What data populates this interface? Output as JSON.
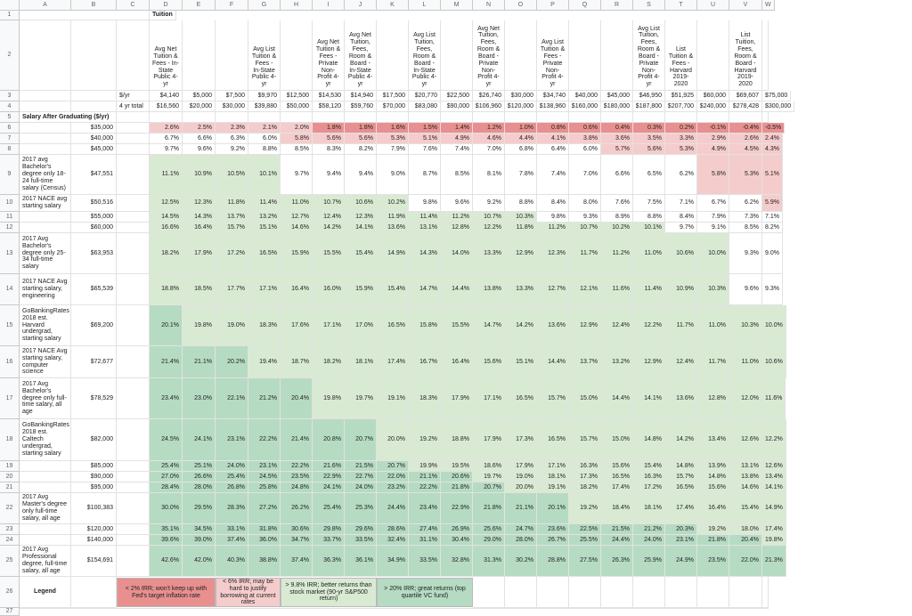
{
  "columns": [
    "A",
    "B",
    "C",
    "D",
    "E",
    "F",
    "G",
    "H",
    "I",
    "J",
    "K",
    "L",
    "M",
    "N",
    "O",
    "P",
    "Q",
    "R",
    "S",
    "T",
    "U",
    "V",
    "W"
  ],
  "rows": [
    "1",
    "2",
    "3",
    "4",
    "5",
    "6",
    "7",
    "8",
    "9",
    "10",
    "11",
    "12",
    "13",
    "14",
    "15",
    "16",
    "17",
    "18",
    "19",
    "20",
    "21",
    "22",
    "23",
    "24",
    "25",
    "26",
    "27"
  ],
  "header": {
    "tuition_label": "Tuition",
    "per_yr_label": "$/yr",
    "total_label": "4 yr total",
    "salary_label": "Salary After Graduating ($/yr)",
    "col_titles": {
      "D": "Avg Net Tuition & Fees - In-State Public 4-yr",
      "G": "Avg List Tuition & Fees - In-State Public 4-yr",
      "I": "Avg Net Tuition & Fees - Private Non-Profit 4-yr",
      "J": "Avg Net Tuition, Fees, Room & Board - In-State Public 4-yr",
      "L": "Avg List Tuition, Fees, Room & Board - In-State Public 4-yr",
      "N": "Avg Net Tuition, Fees, Room & Board - Private Non-Profit 4-yr",
      "P": "Avg List Tuition & Fees - Private Non-Profit 4-yr",
      "S": "Avg List Tuition, Fees, Room & Board - Private Non-Profit 4-yr",
      "T": "List Tuition & Fees - Harvard 2019-2020",
      "V": "List Tuition, Fees, Room & Board - Harvard 2019-2020"
    },
    "per_yr": [
      "$4,140",
      "$5,000",
      "$7,500",
      "$9,970",
      "$12,500",
      "$14,530",
      "$14,940",
      "$17,500",
      "$20,770",
      "$22,500",
      "$26,740",
      "$30,000",
      "$34,740",
      "$40,000",
      "$45,000",
      "$46,950",
      "$51,925",
      "$60,000",
      "$69,607",
      "$75,000"
    ],
    "total": [
      "$16,560",
      "$20,000",
      "$30,000",
      "$39,880",
      "$50,000",
      "$58,120",
      "$59,760",
      "$70,000",
      "$83,080",
      "$90,000",
      "$106,960",
      "$120,000",
      "$138,960",
      "$160,000",
      "$180,000",
      "$187,800",
      "$207,700",
      "$240,000",
      "$278,428",
      "$300,000"
    ]
  },
  "data_rows": [
    {
      "label": "",
      "salary": "$35,000",
      "v": [
        "2.6%",
        "2.5%",
        "2.3%",
        "2.1%",
        "2.0%",
        "1.8%",
        "1.8%",
        "1.6%",
        "1.5%",
        "1.4%",
        "1.2%",
        "1.0%",
        "0.8%",
        "0.6%",
        "0.4%",
        "0.3%",
        "0.2%",
        "-0.1%",
        "-0.4%",
        "-0.5%"
      ]
    },
    {
      "label": "",
      "salary": "$40,000",
      "v": [
        "6.7%",
        "6.6%",
        "6.3%",
        "6.0%",
        "5.8%",
        "5.6%",
        "5.6%",
        "5.3%",
        "5.1%",
        "4.9%",
        "4.6%",
        "4.4%",
        "4.1%",
        "3.8%",
        "3.6%",
        "3.5%",
        "3.3%",
        "2.9%",
        "2.6%",
        "2.4%"
      ]
    },
    {
      "label": "",
      "salary": "$45,000",
      "v": [
        "9.7%",
        "9.6%",
        "9.2%",
        "8.8%",
        "8.5%",
        "8.3%",
        "8.2%",
        "7.9%",
        "7.6%",
        "7.4%",
        "7.0%",
        "6.8%",
        "6.4%",
        "6.0%",
        "5.7%",
        "5.6%",
        "5.3%",
        "4.9%",
        "4.5%",
        "4.3%"
      ]
    },
    {
      "label": "2017 avg Bachelor's degree only 18-24 full-time salary (Census)",
      "salary": "$47,551",
      "v": [
        "11.1%",
        "10.9%",
        "10.5%",
        "10.1%",
        "9.7%",
        "9.4%",
        "9.4%",
        "9.0%",
        "8.7%",
        "8.5%",
        "8.1%",
        "7.8%",
        "7.4%",
        "7.0%",
        "6.6%",
        "6.5%",
        "6.2%",
        "5.8%",
        "5.3%",
        "5.1%"
      ]
    },
    {
      "label": "2017 NACE avg starting salary",
      "salary": "$50,516",
      "v": [
        "12.5%",
        "12.3%",
        "11.8%",
        "11.4%",
        "11.0%",
        "10.7%",
        "10.6%",
        "10.2%",
        "9.8%",
        "9.6%",
        "9.2%",
        "8.8%",
        "8.4%",
        "8.0%",
        "7.6%",
        "7.5%",
        "7.1%",
        "6.7%",
        "6.2%",
        "5.9%"
      ]
    },
    {
      "label": "",
      "salary": "$55,000",
      "v": [
        "14.5%",
        "14.3%",
        "13.7%",
        "13.2%",
        "12.7%",
        "12.4%",
        "12.3%",
        "11.9%",
        "11.4%",
        "11.2%",
        "10.7%",
        "10.3%",
        "9.8%",
        "9.3%",
        "8.9%",
        "8.8%",
        "8.4%",
        "7.9%",
        "7.3%",
        "7.1%"
      ]
    },
    {
      "label": "",
      "salary": "$60,000",
      "v": [
        "16.6%",
        "16.4%",
        "15.7%",
        "15.1%",
        "14.6%",
        "14.2%",
        "14.1%",
        "13.6%",
        "13.1%",
        "12.8%",
        "12.2%",
        "11.8%",
        "11.2%",
        "10.7%",
        "10.2%",
        "10.1%",
        "9.7%",
        "9.1%",
        "8.5%",
        "8.2%"
      ]
    },
    {
      "label": "2017 Avg Bachelor's degree only 25-34 full-time salary",
      "salary": "$63,953",
      "v": [
        "18.2%",
        "17.9%",
        "17.2%",
        "16.5%",
        "15.9%",
        "15.5%",
        "15.4%",
        "14.9%",
        "14.3%",
        "14.0%",
        "13.3%",
        "12.9%",
        "12.3%",
        "11.7%",
        "11.2%",
        "11.0%",
        "10.6%",
        "10.0%",
        "9.3%",
        "9.0%"
      ]
    },
    {
      "label": "2017 NACE Avg starting salary, engineering",
      "salary": "$65,539",
      "v": [
        "18.8%",
        "18.5%",
        "17.7%",
        "17.1%",
        "16.4%",
        "16.0%",
        "15.9%",
        "15.4%",
        "14.7%",
        "14.4%",
        "13.8%",
        "13.3%",
        "12.7%",
        "12.1%",
        "11.6%",
        "11.4%",
        "10.9%",
        "10.3%",
        "9.6%",
        "9.3%"
      ]
    },
    {
      "label": "GoBankingRates 2018 est. Harvard undergrad, starting salary",
      "salary": "$69,200",
      "v": [
        "20.1%",
        "19.8%",
        "19.0%",
        "18.3%",
        "17.6%",
        "17.1%",
        "17.0%",
        "16.5%",
        "15.8%",
        "15.5%",
        "14.7%",
        "14.2%",
        "13.6%",
        "12.9%",
        "12.4%",
        "12.2%",
        "11.7%",
        "11.0%",
        "10.3%",
        "10.0%"
      ]
    },
    {
      "label": "2017 NACE Avg starting salary, computer science",
      "salary": "$72,677",
      "v": [
        "21.4%",
        "21.1%",
        "20.2%",
        "19.4%",
        "18.7%",
        "18.2%",
        "18.1%",
        "17.4%",
        "16.7%",
        "16.4%",
        "15.6%",
        "15.1%",
        "14.4%",
        "13.7%",
        "13.2%",
        "12.9%",
        "12.4%",
        "11.7%",
        "11.0%",
        "10.6%"
      ]
    },
    {
      "label": "2017 Avg Bachelor's degree only full-time salary, all age",
      "salary": "$78,529",
      "v": [
        "23.4%",
        "23.0%",
        "22.1%",
        "21.2%",
        "20.4%",
        "19.8%",
        "19.7%",
        "19.1%",
        "18.3%",
        "17.9%",
        "17.1%",
        "16.5%",
        "15.7%",
        "15.0%",
        "14.4%",
        "14.1%",
        "13.6%",
        "12.8%",
        "12.0%",
        "11.6%"
      ]
    },
    {
      "label": "GoBankingRates 2018 est. Caltech undergrad, starting salary",
      "salary": "$82,000",
      "v": [
        "24.5%",
        "24.1%",
        "23.1%",
        "22.2%",
        "21.4%",
        "20.8%",
        "20.7%",
        "20.0%",
        "19.2%",
        "18.8%",
        "17.9%",
        "17.3%",
        "16.5%",
        "15.7%",
        "15.0%",
        "14.8%",
        "14.2%",
        "13.4%",
        "12.6%",
        "12.2%"
      ]
    },
    {
      "label": "",
      "salary": "$85,000",
      "v": [
        "25.4%",
        "25.1%",
        "24.0%",
        "23.1%",
        "22.2%",
        "21.6%",
        "21.5%",
        "20.7%",
        "19.9%",
        "19.5%",
        "18.6%",
        "17.9%",
        "17.1%",
        "16.3%",
        "15.6%",
        "15.4%",
        "14.8%",
        "13.9%",
        "13.1%",
        "12.6%"
      ]
    },
    {
      "label": "",
      "salary": "$90,000",
      "v": [
        "27.0%",
        "26.6%",
        "25.4%",
        "24.5%",
        "23.5%",
        "22.9%",
        "22.7%",
        "22.0%",
        "21.1%",
        "20.6%",
        "19.7%",
        "19.0%",
        "18.1%",
        "17.3%",
        "16.5%",
        "16.3%",
        "15.7%",
        "14.8%",
        "13.8%",
        "13.4%"
      ]
    },
    {
      "label": "",
      "salary": "$95,000",
      "v": [
        "28.4%",
        "28.0%",
        "26.8%",
        "25.8%",
        "24.8%",
        "24.1%",
        "24.0%",
        "23.2%",
        "22.2%",
        "21.8%",
        "20.7%",
        "20.0%",
        "19.1%",
        "18.2%",
        "17.4%",
        "17.2%",
        "16.5%",
        "15.6%",
        "14.6%",
        "14.1%"
      ]
    },
    {
      "label": "2017 Avg Master's degree only full-time salary, all age",
      "salary": "$100,383",
      "v": [
        "30.0%",
        "29.5%",
        "28.3%",
        "27.2%",
        "26.2%",
        "25.4%",
        "25.3%",
        "24.4%",
        "23.4%",
        "22.9%",
        "21.8%",
        "21.1%",
        "20.1%",
        "19.2%",
        "18.4%",
        "18.1%",
        "17.4%",
        "16.4%",
        "15.4%",
        "14.9%"
      ]
    },
    {
      "label": "",
      "salary": "$120,000",
      "v": [
        "35.1%",
        "34.5%",
        "33.1%",
        "31.8%",
        "30.6%",
        "29.8%",
        "29.6%",
        "28.6%",
        "27.4%",
        "26.9%",
        "25.6%",
        "24.7%",
        "23.6%",
        "22.5%",
        "21.5%",
        "21.2%",
        "20.3%",
        "19.2%",
        "18.0%",
        "17.4%"
      ]
    },
    {
      "label": "",
      "salary": "$140,000",
      "v": [
        "39.6%",
        "39.0%",
        "37.4%",
        "36.0%",
        "34.7%",
        "33.7%",
        "33.5%",
        "32.4%",
        "31.1%",
        "30.4%",
        "29.0%",
        "28.0%",
        "26.7%",
        "25.5%",
        "24.4%",
        "24.0%",
        "23.1%",
        "21.8%",
        "20.4%",
        "19.8%"
      ]
    },
    {
      "label": "2017 Avg Professional degree, full-time salary, all age",
      "salary": "$154,691",
      "v": [
        "42.6%",
        "42.0%",
        "40.3%",
        "38.8%",
        "37.4%",
        "36.3%",
        "36.1%",
        "34.9%",
        "33.5%",
        "32.8%",
        "31.3%",
        "30.2%",
        "28.8%",
        "27.5%",
        "26.3%",
        "25.9%",
        "24.9%",
        "23.5%",
        "22.0%",
        "21.3%"
      ]
    }
  ],
  "legend": {
    "title": "Legend",
    "items": [
      {
        "text": "< 2% IRR; won't keep up with Fed's target inflation rate",
        "color": "#e8908f"
      },
      {
        "text": "< 6% IRR; may be hard to justify borrowing at current rates",
        "color": "#f5cccc"
      },
      {
        "text": "> 9.8% IRR; better returns than stock market (90-yr S&P500 return)",
        "color": "#d9ead3"
      },
      {
        "text": "> 20% IRR; great returns (top quartile VC fund)",
        "color": "#b6dbc3"
      }
    ]
  }
}
